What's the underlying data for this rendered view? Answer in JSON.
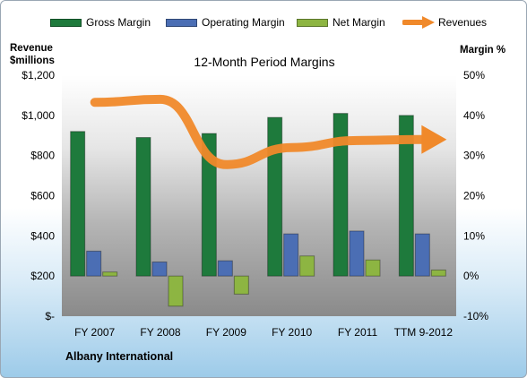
{
  "chart_data": {
    "type": "bar",
    "title": "12-Month Period Margins",
    "left_axis_label": [
      "Revenue",
      "$millions"
    ],
    "right_axis_label": "Margin %",
    "categories": [
      "FY 2007",
      "FY 2008",
      "FY 2009",
      "FY 2010",
      "FY 2011",
      "TTM 9-2012"
    ],
    "left_ticks": [
      "$-",
      "$200",
      "$400",
      "$600",
      "$800",
      "$1,000",
      "$1,200"
    ],
    "left_ylim": [
      0,
      1200
    ],
    "right_ticks": [
      "-10%",
      "0%",
      "10%",
      "20%",
      "30%",
      "40%",
      "50%"
    ],
    "right_ylim": [
      -10,
      50
    ],
    "series": [
      {
        "name": "Gross Margin",
        "axis": "right",
        "color": "#1e7a3c",
        "values": [
          36.0,
          34.5,
          35.5,
          39.5,
          40.5,
          40.0
        ]
      },
      {
        "name": "Operating Margin",
        "axis": "right",
        "color": "#4b6eb4",
        "values": [
          6.2,
          3.5,
          3.8,
          10.5,
          11.2,
          10.5
        ]
      },
      {
        "name": "Net Margin",
        "axis": "right",
        "color": "#8db542",
        "values": [
          1.0,
          -7.5,
          -4.5,
          5.0,
          4.0,
          1.5
        ]
      },
      {
        "name": "Revenues",
        "axis": "left",
        "type": "line",
        "color": "#f0892a",
        "values": [
          1065,
          1080,
          755,
          840,
          875,
          880
        ]
      }
    ],
    "legend_position": "top",
    "grid": false,
    "footer": "Albany International"
  }
}
